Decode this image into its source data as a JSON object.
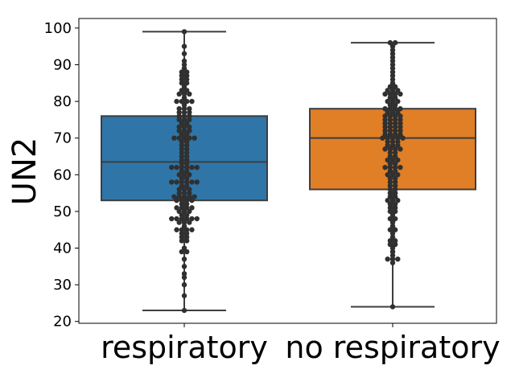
{
  "chart_data": {
    "type": "box-swarm",
    "ylabel": "UN2",
    "xlabel": "",
    "title": "",
    "categories": [
      "respiratory",
      "no respiratory"
    ],
    "ylim": [
      19.5,
      102.6
    ],
    "yticks": [
      20,
      30,
      40,
      50,
      60,
      70,
      80,
      90,
      100
    ],
    "grid": false,
    "colors": {
      "respiratory": "#2f75a8",
      "no respiratory": "#e07f26",
      "points": "#303030",
      "lines": "#3d3d3d"
    },
    "boxes": [
      {
        "category": "respiratory",
        "whisker_low": 23,
        "q1": 53,
        "median": 63.5,
        "q3": 76,
        "whisker_high": 99
      },
      {
        "category": "no respiratory",
        "whisker_low": 24,
        "q1": 56,
        "median": 70,
        "q3": 78,
        "whisker_high": 96
      }
    ],
    "points": [
      [
        23,
        27,
        30,
        32,
        33,
        35,
        37,
        39,
        39,
        40,
        42,
        42,
        43,
        43,
        44,
        44,
        45,
        45,
        45,
        45,
        46,
        47,
        47,
        47,
        48,
        48,
        48,
        48,
        48,
        48,
        49,
        49,
        50,
        50,
        50,
        51,
        51,
        51,
        51,
        52,
        52,
        53,
        53,
        53,
        53,
        54,
        54,
        54,
        54,
        54,
        55,
        55,
        55,
        56,
        56,
        56,
        57,
        57,
        58,
        58,
        58,
        58,
        58,
        58,
        59,
        59,
        60,
        60,
        60,
        61,
        61,
        62,
        62,
        62,
        62,
        62,
        62,
        63,
        63,
        64,
        64,
        65,
        65,
        66,
        66,
        67,
        67,
        68,
        68,
        69,
        69,
        70,
        70,
        70,
        70,
        70,
        71,
        71,
        72,
        72,
        72,
        73,
        73,
        73,
        74,
        74,
        75,
        75,
        75,
        76,
        76,
        76,
        77,
        77,
        77,
        78,
        78,
        78,
        79,
        80,
        80,
        80,
        80,
        81,
        82,
        82,
        82,
        83,
        83,
        84,
        85,
        85,
        86,
        86,
        87,
        87,
        88,
        88,
        89,
        90,
        91,
        93,
        95,
        99
      ],
      [
        24,
        36,
        37,
        37,
        37,
        38,
        39,
        40,
        41,
        41,
        42,
        42,
        43,
        44,
        45,
        45,
        46,
        47,
        48,
        48,
        49,
        50,
        50,
        51,
        51,
        52,
        52,
        53,
        53,
        53,
        54,
        54,
        55,
        55,
        56,
        56,
        57,
        57,
        58,
        58,
        59,
        59,
        60,
        60,
        60,
        61,
        61,
        62,
        62,
        62,
        62,
        63,
        63,
        64,
        64,
        64,
        65,
        65,
        66,
        66,
        67,
        67,
        67,
        67,
        68,
        68,
        68,
        69,
        69,
        69,
        70,
        70,
        70,
        70,
        70,
        71,
        71,
        71,
        71,
        72,
        72,
        72,
        72,
        73,
        73,
        73,
        73,
        74,
        74,
        74,
        74,
        75,
        75,
        75,
        75,
        76,
        76,
        76,
        76,
        77,
        77,
        77,
        78,
        78,
        78,
        78,
        79,
        79,
        80,
        80,
        80,
        81,
        81,
        82,
        82,
        82,
        82,
        83,
        83,
        83,
        84,
        84,
        85,
        86,
        87,
        88,
        89,
        90,
        91,
        92,
        93,
        94,
        95,
        96,
        96
      ]
    ]
  }
}
